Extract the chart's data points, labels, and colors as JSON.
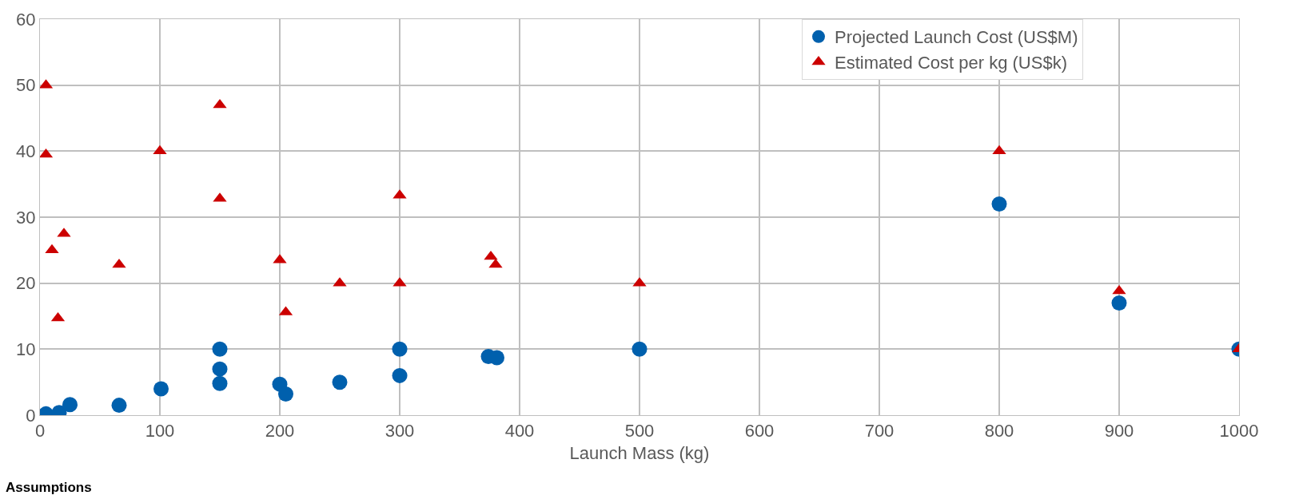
{
  "chart_data": {
    "type": "scatter",
    "xlabel": "Launch Mass (kg)",
    "xlim": [
      0,
      1000
    ],
    "xticks": [
      0,
      100,
      200,
      300,
      400,
      500,
      600,
      700,
      800,
      900,
      1000
    ],
    "ylim": [
      0,
      60
    ],
    "yticks": [
      0,
      10,
      20,
      30,
      40,
      50,
      60
    ],
    "grid": true,
    "legend": "top right",
    "annotations": [
      "Assumptions"
    ],
    "series": [
      {
        "name": "Projected Launch Cost (US$M)",
        "color": "#0060ad",
        "marker": "circle",
        "x": [
          5,
          16,
          25,
          66,
          101,
          150,
          150,
          150,
          200,
          205,
          250,
          300,
          300,
          374,
          381,
          500,
          800,
          900,
          1000
        ],
        "values": [
          0.2,
          0.4,
          1.6,
          1.5,
          4,
          10,
          7,
          4.8,
          4.7,
          3.2,
          5,
          10,
          6,
          8.9,
          8.7,
          10,
          32,
          17,
          10
        ]
      },
      {
        "name": "Estimated Cost per kg (US$k)",
        "color": "#cc0000",
        "marker": "triangle",
        "x": [
          5,
          5,
          10,
          15,
          20,
          66,
          100,
          150,
          150,
          200,
          205,
          250,
          300,
          300,
          376,
          380,
          500,
          800,
          900,
          1000
        ],
        "values": [
          50,
          39.5,
          25,
          14.7,
          27.5,
          22.8,
          40,
          47,
          32.8,
          23.5,
          15.6,
          20,
          33.3,
          20,
          24,
          22.8,
          20,
          40,
          18.8,
          10
        ]
      }
    ]
  }
}
